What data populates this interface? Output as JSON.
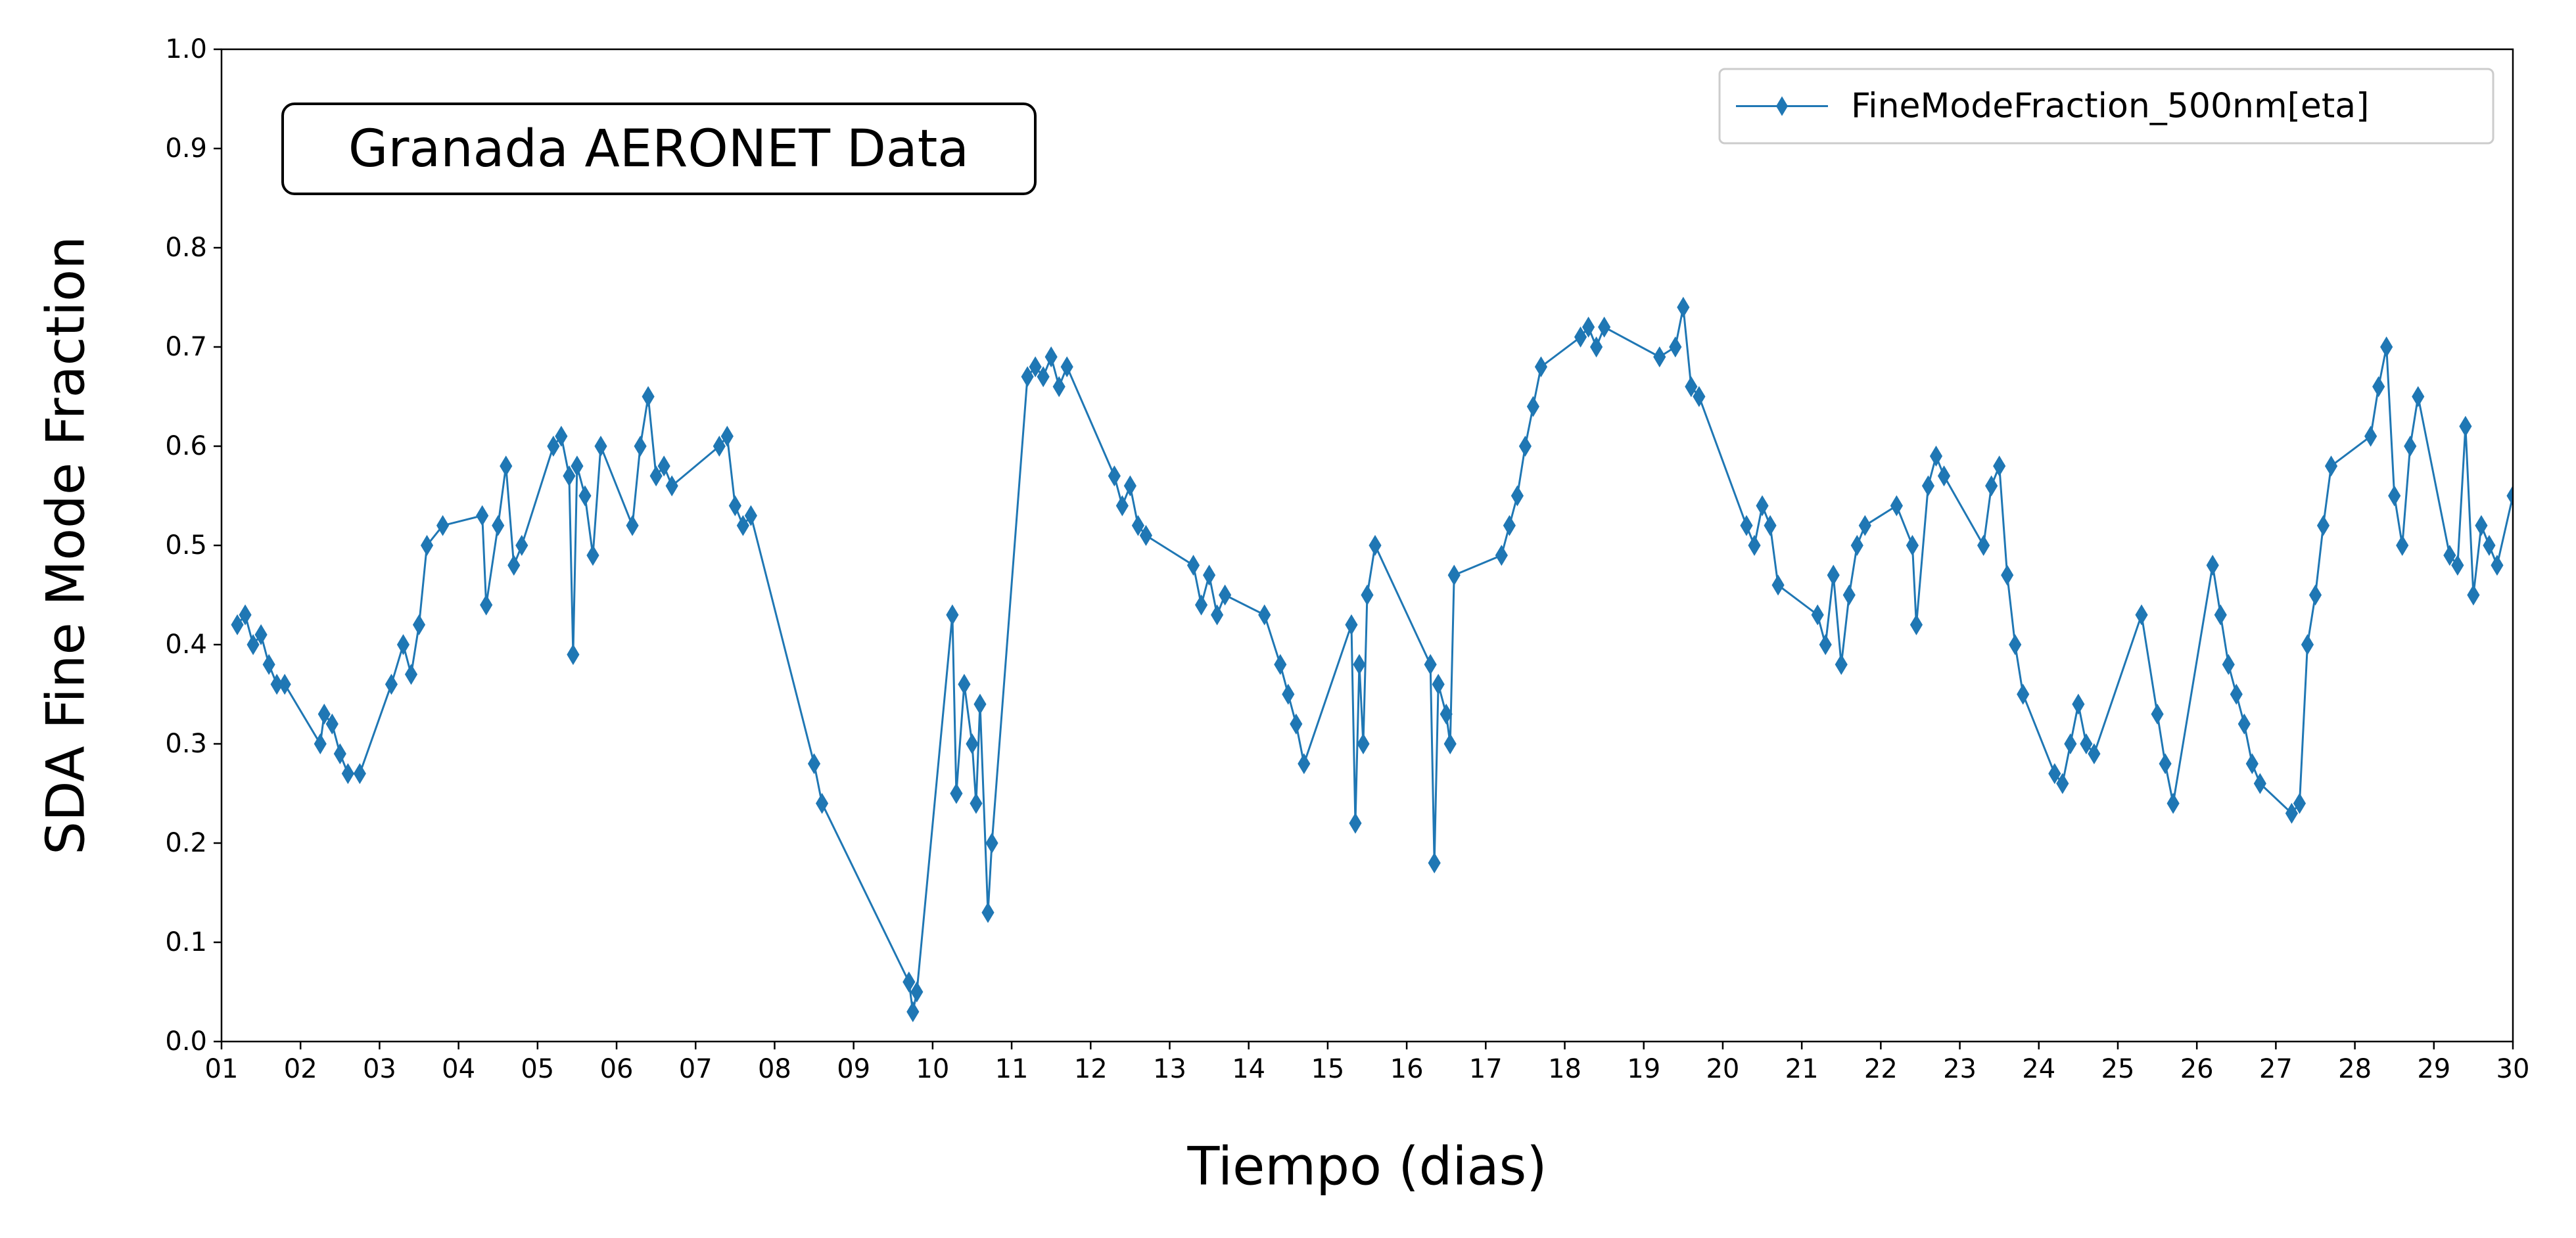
{
  "chart_data": {
    "type": "line",
    "annotation": "Granada AERONET Data",
    "x_label": "Tiempo (dias)",
    "y_label": "SDA Fine Mode Fraction",
    "legend": "upper right",
    "marker": "diamond",
    "xlim": [
      1,
      30
    ],
    "ylim": [
      0,
      1
    ],
    "xticks": [
      {
        "value": 1,
        "label": "01"
      },
      {
        "value": 2,
        "label": "02"
      },
      {
        "value": 3,
        "label": "03"
      },
      {
        "value": 4,
        "label": "04"
      },
      {
        "value": 5,
        "label": "05"
      },
      {
        "value": 6,
        "label": "06"
      },
      {
        "value": 7,
        "label": "07"
      },
      {
        "value": 8,
        "label": "08"
      },
      {
        "value": 9,
        "label": "09"
      },
      10,
      11,
      12,
      13,
      14,
      15,
      16,
      17,
      18,
      19,
      20,
      21,
      22,
      23,
      24,
      25,
      26,
      27,
      28,
      29,
      30
    ],
    "yticks": [
      {
        "value": 0,
        "label": "0.0"
      },
      0.1,
      0.2,
      0.3,
      0.4,
      0.5,
      0.6,
      0.7,
      0.8,
      0.9,
      {
        "value": 1,
        "label": "1.0"
      }
    ],
    "x": [
      1.2,
      1.3,
      1.4,
      1.5,
      1.6,
      1.7,
      1.8,
      2.25,
      2.3,
      2.4,
      2.5,
      2.6,
      2.75,
      3.15,
      3.3,
      3.4,
      3.5,
      3.6,
      3.8,
      4.3,
      4.35,
      4.5,
      4.6,
      4.7,
      4.8,
      5.2,
      5.3,
      5.4,
      5.45,
      5.5,
      5.6,
      5.7,
      5.8,
      6.2,
      6.3,
      6.4,
      6.5,
      6.6,
      6.7,
      7.3,
      7.4,
      7.5,
      7.6,
      7.7,
      8.5,
      8.6,
      9.7,
      9.75,
      9.8,
      10.25,
      10.3,
      10.4,
      10.5,
      10.55,
      10.6,
      10.7,
      10.75,
      11.2,
      11.3,
      11.4,
      11.5,
      11.6,
      11.7,
      12.3,
      12.4,
      12.5,
      12.6,
      12.7,
      13.3,
      13.4,
      13.5,
      13.6,
      13.7,
      14.2,
      14.4,
      14.5,
      14.6,
      14.7,
      15.3,
      15.35,
      15.4,
      15.45,
      15.5,
      15.6,
      16.3,
      16.35,
      16.4,
      16.5,
      16.55,
      16.6,
      17.2,
      17.3,
      17.4,
      17.5,
      17.6,
      17.7,
      18.2,
      18.3,
      18.4,
      18.5,
      19.2,
      19.4,
      19.5,
      19.6,
      19.7,
      20.3,
      20.4,
      20.5,
      20.6,
      20.7,
      21.2,
      21.3,
      21.4,
      21.5,
      21.6,
      21.7,
      21.8,
      22.2,
      22.4,
      22.45,
      22.6,
      22.7,
      22.8,
      23.3,
      23.4,
      23.5,
      23.6,
      23.7,
      23.8,
      24.2,
      24.3,
      24.4,
      24.5,
      24.6,
      24.7,
      25.3,
      25.5,
      25.6,
      25.7,
      26.2,
      26.3,
      26.4,
      26.5,
      26.6,
      26.7,
      26.8,
      27.2,
      27.3,
      27.4,
      27.5,
      27.6,
      27.7,
      28.2,
      28.3,
      28.4,
      28.5,
      28.6,
      28.7,
      28.8,
      29.2,
      29.3,
      29.4,
      29.5,
      29.6,
      29.7,
      29.8,
      30
    ],
    "series": [
      {
        "name": "FineModeFraction_500nm[eta]",
        "color": "#1f77b4",
        "values": [
          0.42,
          0.43,
          0.4,
          0.41,
          0.38,
          0.36,
          0.36,
          0.3,
          0.33,
          0.32,
          0.29,
          0.27,
          0.27,
          0.36,
          0.4,
          0.37,
          0.42,
          0.5,
          0.52,
          0.53,
          0.44,
          0.52,
          0.58,
          0.48,
          0.5,
          0.6,
          0.61,
          0.57,
          0.39,
          0.58,
          0.55,
          0.49,
          0.6,
          0.52,
          0.6,
          0.65,
          0.57,
          0.58,
          0.56,
          0.6,
          0.61,
          0.54,
          0.52,
          0.53,
          0.28,
          0.24,
          0.06,
          0.03,
          0.05,
          0.43,
          0.25,
          0.36,
          0.3,
          0.24,
          0.34,
          0.13,
          0.2,
          0.67,
          0.68,
          0.67,
          0.69,
          0.66,
          0.68,
          0.57,
          0.54,
          0.56,
          0.52,
          0.51,
          0.48,
          0.44,
          0.47,
          0.43,
          0.45,
          0.43,
          0.38,
          0.35,
          0.32,
          0.28,
          0.42,
          0.22,
          0.38,
          0.3,
          0.45,
          0.5,
          0.38,
          0.18,
          0.36,
          0.33,
          0.3,
          0.47,
          0.49,
          0.52,
          0.55,
          0.6,
          0.64,
          0.68,
          0.71,
          0.72,
          0.7,
          0.72,
          0.69,
          0.7,
          0.74,
          0.66,
          0.65,
          0.52,
          0.5,
          0.54,
          0.52,
          0.46,
          0.43,
          0.4,
          0.47,
          0.38,
          0.45,
          0.5,
          0.52,
          0.54,
          0.5,
          0.42,
          0.56,
          0.59,
          0.57,
          0.5,
          0.56,
          0.58,
          0.47,
          0.4,
          0.35,
          0.27,
          0.26,
          0.3,
          0.34,
          0.3,
          0.29,
          0.43,
          0.33,
          0.28,
          0.24,
          0.48,
          0.43,
          0.38,
          0.35,
          0.32,
          0.28,
          0.26,
          0.23,
          0.24,
          0.4,
          0.45,
          0.52,
          0.58,
          0.61,
          0.66,
          0.7,
          0.55,
          0.5,
          0.6,
          0.65,
          0.49,
          0.48,
          0.62,
          0.45,
          0.52,
          0.5,
          0.48,
          0.55
        ]
      }
    ]
  }
}
